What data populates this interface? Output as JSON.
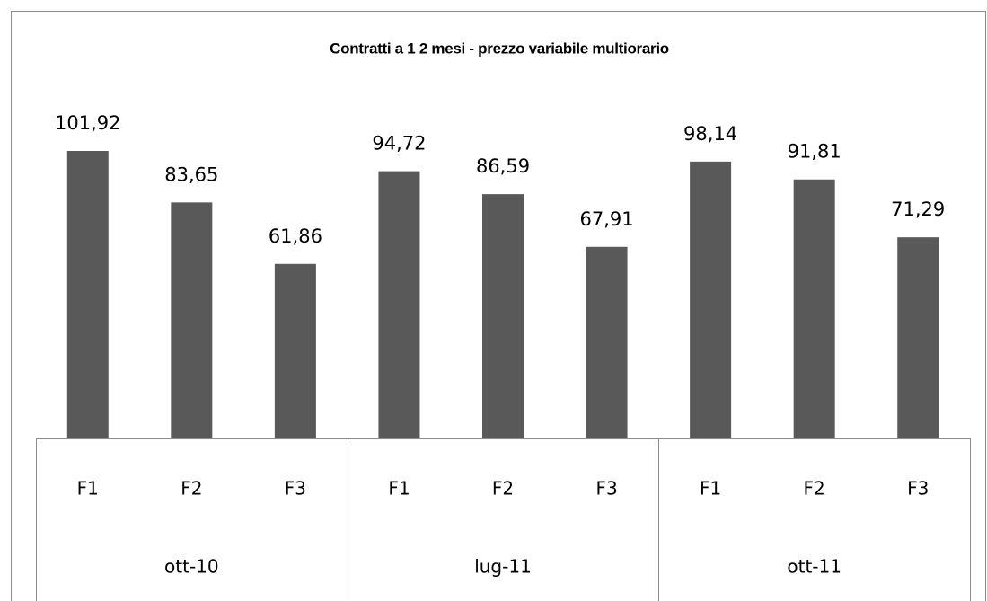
{
  "chart_data": {
    "type": "bar",
    "title": "Contratti a 1 2 mesi - prezzo variabile multiorario",
    "categories": [
      "F1",
      "F2",
      "F3",
      "F1",
      "F2",
      "F3",
      "F1",
      "F2",
      "F3"
    ],
    "groups": [
      "ott-10",
      "lug-11",
      "ott-11"
    ],
    "values": [
      101.92,
      83.65,
      61.86,
      94.72,
      86.59,
      67.91,
      98.14,
      91.81,
      71.29
    ],
    "value_labels": [
      "101,92",
      "83,65",
      "61,86",
      "94,72",
      "86,59",
      "67,91",
      "98,14",
      "91,81",
      "71,29"
    ],
    "color": "#595959"
  }
}
